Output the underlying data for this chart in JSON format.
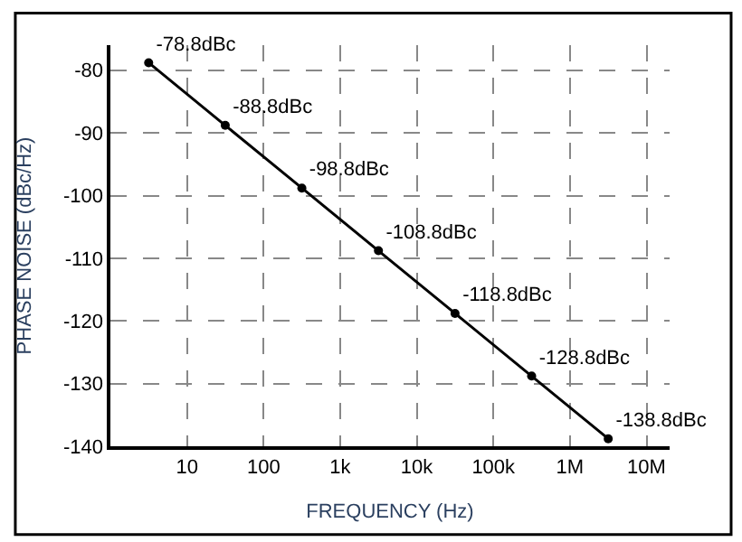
{
  "chart_data": {
    "type": "line",
    "xlabel": "FREQUENCY (Hz)",
    "ylabel": "PHASE NOISE (dBc/Hz)",
    "log": "x",
    "x": [
      3.16,
      31.6,
      316,
      3160,
      31600,
      316000,
      3160000
    ],
    "series": [
      {
        "color": "#000000",
        "values": [
          -78.8,
          -88.8,
          -98.8,
          -108.8,
          -118.8,
          -128.8,
          -138.8
        ],
        "value_labels": [
          "-78.8dBc",
          "-88.8dBc",
          "-98.8dBc",
          "-108.8dBc",
          "-118.8dBc",
          "-128.8dBc",
          "-138.8dBc"
        ]
      }
    ],
    "xlim": [
      1,
      20000000
    ],
    "ylim": [
      -140,
      -76
    ],
    "xticks": [
      {
        "value": 10,
        "label": "10"
      },
      {
        "value": 100,
        "label": "100"
      },
      {
        "value": 1000,
        "label": "1k"
      },
      {
        "value": 10000,
        "label": "10k"
      },
      {
        "value": 100000,
        "label": "100k"
      },
      {
        "value": 1000000,
        "label": "1M"
      },
      {
        "value": 10000000,
        "label": "10M"
      }
    ],
    "yticks": [
      -80,
      -90,
      -100,
      -110,
      -120,
      -130,
      -140
    ],
    "grid": true,
    "marker": "circle",
    "line_style": "solid",
    "legend": false
  }
}
